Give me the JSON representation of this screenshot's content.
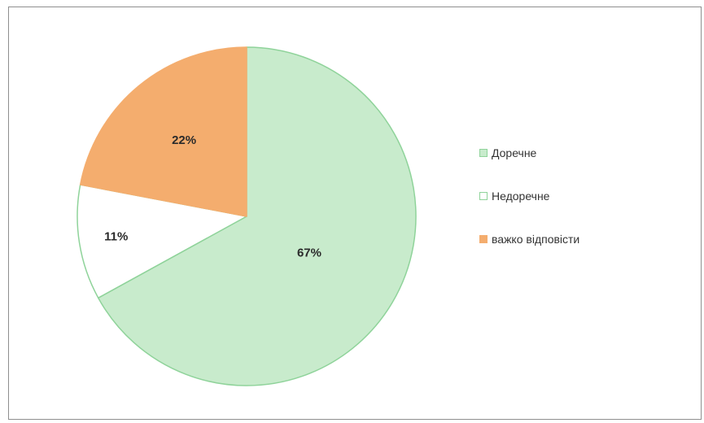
{
  "chart_data": {
    "type": "pie",
    "title": "",
    "categories": [
      "Доречне",
      "Недоречне",
      "важко відповісти"
    ],
    "values": [
      67,
      11,
      22
    ],
    "value_labels": [
      "67%",
      "11%",
      "22%"
    ],
    "colors": [
      "#c8ebcc",
      "#ffffff",
      "#f4ad6e"
    ],
    "stroke_colors": [
      "#8fd39a",
      "#8fd39a",
      "#f4ad6e"
    ],
    "start_angle_deg": 0,
    "direction": "clockwise",
    "legend_position": "right"
  }
}
